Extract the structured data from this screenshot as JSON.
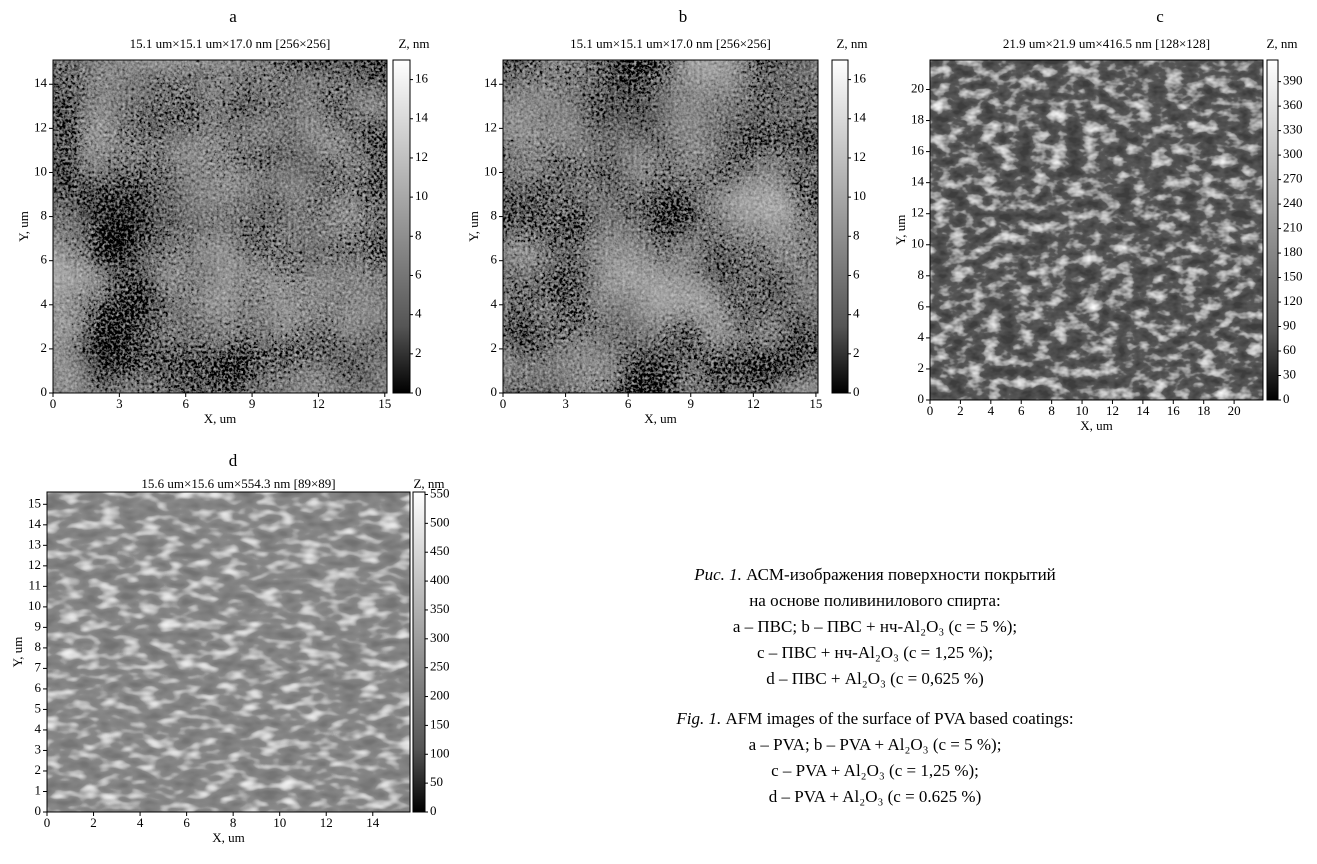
{
  "panels": [
    {
      "label": "a",
      "header": "15.1 um×15.1 um×17.0 nm [256×256]",
      "xlabel": "X, um",
      "ylabel": "Y, um",
      "zlabel": "Z, nm",
      "xlim": [
        0,
        15.1
      ],
      "ylim": [
        0,
        15.1
      ],
      "xticks": [
        0,
        3,
        6,
        9,
        12,
        15
      ],
      "yticks": [
        0,
        2,
        4,
        6,
        8,
        10,
        12,
        14
      ],
      "zlim": [
        0,
        17
      ],
      "zticks": [
        0,
        2,
        4,
        6,
        8,
        10,
        12,
        14,
        16
      ]
    },
    {
      "label": "b",
      "header": "15.1 um×15.1 um×17.0 nm [256×256]",
      "xlabel": "X, um",
      "ylabel": "Y, um",
      "zlabel": "Z, nm",
      "xlim": [
        0,
        15.1
      ],
      "ylim": [
        0,
        15.1
      ],
      "xticks": [
        0,
        3,
        6,
        9,
        12,
        15
      ],
      "yticks": [
        0,
        2,
        4,
        6,
        8,
        10,
        12,
        14
      ],
      "zlim": [
        0,
        17
      ],
      "zticks": [
        0,
        2,
        4,
        6,
        8,
        10,
        12,
        14,
        16
      ]
    },
    {
      "label": "c",
      "header": "21.9 um×21.9 um×416.5 nm [128×128]",
      "xlabel": "X, um",
      "ylabel": "Y, um",
      "zlabel": "Z, nm",
      "xlim": [
        0,
        21.9
      ],
      "ylim": [
        0,
        21.9
      ],
      "xticks": [
        0,
        2,
        4,
        6,
        8,
        10,
        12,
        14,
        16,
        18,
        20
      ],
      "yticks": [
        0,
        2,
        4,
        6,
        8,
        10,
        12,
        14,
        16,
        18,
        20
      ],
      "zlim": [
        0,
        416.5
      ],
      "zticks": [
        0,
        30,
        60,
        90,
        120,
        150,
        180,
        210,
        240,
        270,
        300,
        330,
        360,
        390
      ]
    },
    {
      "label": "d",
      "header": "15.6 um×15.6 um×554.3 nm [89×89]",
      "xlabel": "X, um",
      "ylabel": "Y, um",
      "zlabel": "Z, nm",
      "xlim": [
        0,
        15.6
      ],
      "ylim": [
        0,
        15.6
      ],
      "xticks": [
        0,
        2,
        4,
        6,
        8,
        10,
        12,
        14
      ],
      "yticks": [
        0,
        1,
        2,
        3,
        4,
        5,
        6,
        7,
        8,
        9,
        10,
        11,
        12,
        13,
        14,
        15
      ],
      "zlim": [
        0,
        554.3
      ],
      "zticks": [
        0,
        50,
        100,
        150,
        200,
        250,
        300,
        350,
        400,
        450,
        500,
        550
      ]
    }
  ],
  "caption_ru": {
    "label": "Рис. 1.",
    "lines": [
      "АСМ-изображения поверхности покрытий",
      "на основе поливинилового спирта:",
      "a – ПВС;  b – ПВС + нч-Al₂O₃ (c = 5 %);",
      "c – ПВС + нч-Al₂O₃ (c = 1,25 %);",
      "d – ПВС + Al₂O₃ (c  = 0,625 %)"
    ]
  },
  "caption_en": {
    "label": "Fig. 1.",
    "lines": [
      "AFM images of the surface of PVA based coatings:",
      "a – PVA;  b – PVA + Al₂O₃ (c = 5 %);",
      "c – PVA + Al₂O₃ (c = 1,25 %);",
      "d – PVA + Al₂O₃ (c = 0.625 %)"
    ]
  }
}
